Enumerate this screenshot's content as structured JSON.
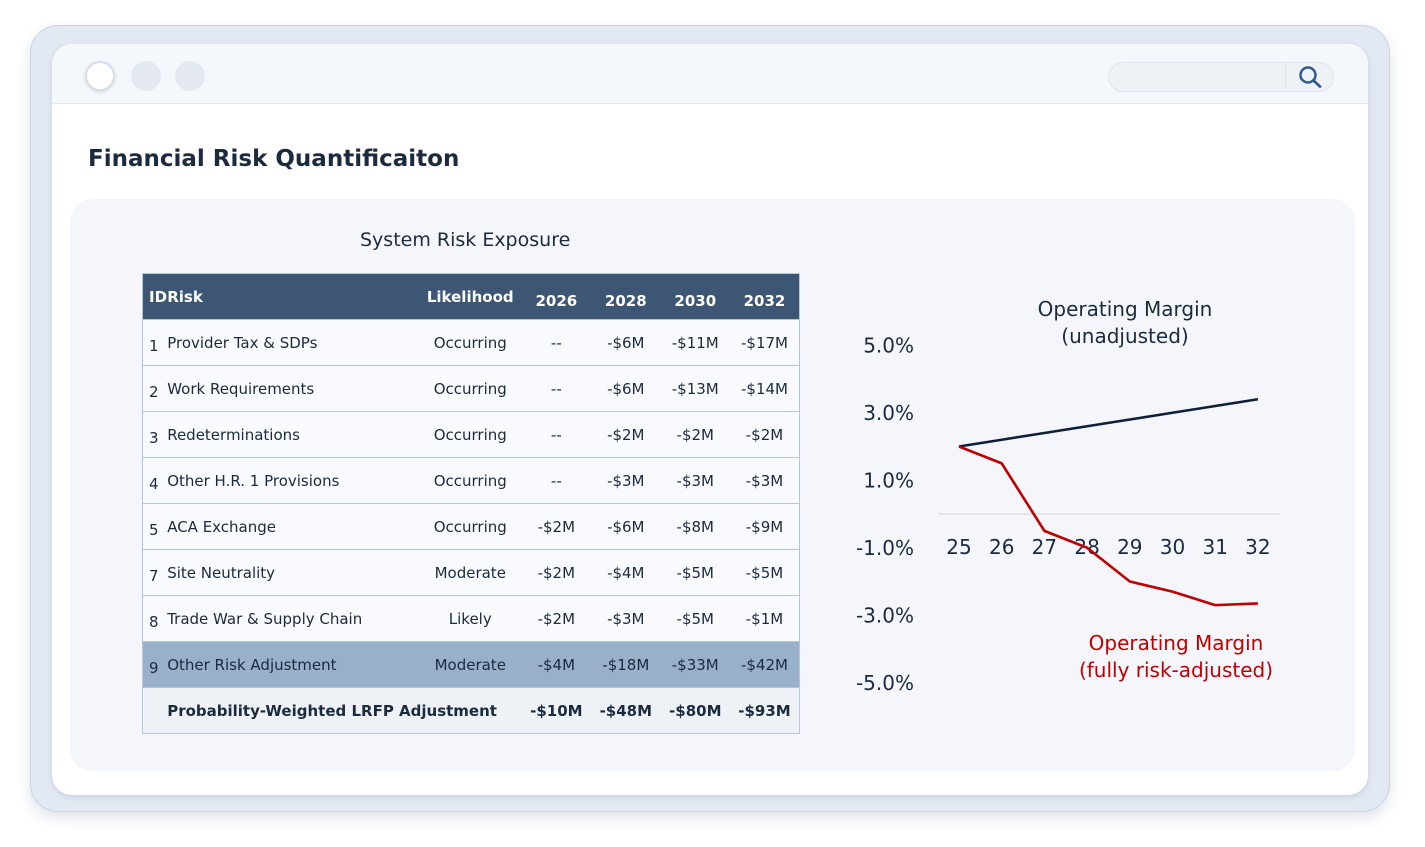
{
  "window": {
    "controls": [
      "close",
      "minimize",
      "maximize"
    ],
    "search_icon": "search-icon"
  },
  "page": {
    "title": "Financial Risk Quantificaiton"
  },
  "table": {
    "title": "System Risk Exposure",
    "headers": {
      "id": "ID",
      "risk": "Risk",
      "likelihood": "Likelihood",
      "years": [
        "2026",
        "2028",
        "2030",
        "2032"
      ]
    },
    "rows": [
      {
        "id": "1",
        "risk": "Provider Tax & SDPs",
        "likelihood": "Occurring",
        "values": [
          "--",
          "-$6M",
          "-$11M",
          "-$17M"
        ]
      },
      {
        "id": "2",
        "risk": "Work Requirements",
        "likelihood": "Occurring",
        "values": [
          "--",
          "-$6M",
          "-$13M",
          "-$14M"
        ]
      },
      {
        "id": "3",
        "risk": "Redeterminations",
        "likelihood": "Occurring",
        "values": [
          "--",
          "-$2M",
          "-$2M",
          "-$2M"
        ]
      },
      {
        "id": "4",
        "risk": "Other H.R. 1 Provisions",
        "likelihood": "Occurring",
        "values": [
          "--",
          "-$3M",
          "-$3M",
          "-$3M"
        ]
      },
      {
        "id": "5",
        "risk": "ACA Exchange",
        "likelihood": "Occurring",
        "values": [
          "-$2M",
          "-$6M",
          "-$8M",
          "-$9M"
        ]
      },
      {
        "id": "7",
        "risk": "Site Neutrality",
        "likelihood": "Moderate",
        "values": [
          "-$2M",
          "-$4M",
          "-$5M",
          "-$5M"
        ]
      },
      {
        "id": "8",
        "risk": "Trade War & Supply Chain",
        "likelihood": "Likely",
        "values": [
          "-$2M",
          "-$3M",
          "-$5M",
          "-$1M"
        ]
      },
      {
        "id": "9",
        "risk": "Other Risk Adjustment",
        "likelihood": "Moderate",
        "values": [
          "-$4M",
          "-$18M",
          "-$33M",
          "-$42M"
        ],
        "highlighted": true
      }
    ],
    "total": {
      "label": "Probability-Weighted LRFP Adjustment",
      "values": [
        "-$10M",
        "-$48M",
        "-$80M",
        "-$93M"
      ]
    }
  },
  "chart_data": {
    "type": "line",
    "x": [
      "25",
      "26",
      "27",
      "28",
      "29",
      "30",
      "31",
      "32"
    ],
    "yticks": [
      "5.0%",
      "3.0%",
      "1.0%",
      "-1.0%",
      "-3.0%",
      "-5.0%"
    ],
    "ylim": [
      -5,
      5
    ],
    "series": [
      {
        "name": "Operating Margin (unadjusted)",
        "label_lines": [
          "Operating Margin",
          "(unadjusted)"
        ],
        "color": "#0f1f38",
        "values": [
          2.0,
          2.2,
          2.4,
          2.6,
          2.8,
          3.0,
          3.2,
          3.4
        ]
      },
      {
        "name": "Operating Margin (fully risk-adjusted)",
        "label_lines": [
          "Operating Margin",
          "(fully risk-adjusted)"
        ],
        "color": "#c00000",
        "values": [
          2.0,
          1.5,
          -0.5,
          -1.0,
          -2.0,
          -2.3,
          -2.7,
          -2.65
        ]
      }
    ],
    "grid": false,
    "zero_line": true
  }
}
